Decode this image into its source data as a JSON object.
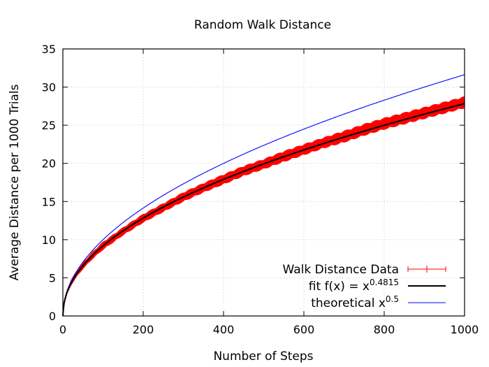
{
  "chart_data": {
    "type": "line",
    "title": "Random Walk Distance",
    "xlabel": "Number of Steps",
    "ylabel": "Average Distance per 1000 Trials",
    "xlim": [
      0,
      1000
    ],
    "ylim": [
      0,
      35
    ],
    "x_ticks": [
      "0",
      "200",
      "400",
      "600",
      "800",
      "1000"
    ],
    "y_ticks": [
      "0",
      "5",
      "10",
      "15",
      "20",
      "25",
      "30",
      "35"
    ],
    "grid": true,
    "legend_position": "bottom-right",
    "series": [
      {
        "name": "Walk Distance Data",
        "style": "errorbars",
        "color": "#ff0000",
        "x": [
          1,
          5,
          10,
          20,
          30,
          50,
          75,
          100,
          150,
          200,
          250,
          300,
          350,
          400,
          450,
          500,
          550,
          600,
          650,
          700,
          750,
          800,
          850,
          900,
          950,
          1000
        ],
        "y": [
          0.8,
          2.1,
          3.1,
          4.3,
          5.2,
          6.6,
          8.0,
          9.2,
          11.1,
          12.8,
          14.2,
          15.6,
          16.8,
          17.9,
          19.0,
          19.9,
          20.9,
          21.8,
          22.7,
          23.5,
          24.4,
          25.2,
          25.9,
          26.6,
          27.3,
          28.0
        ],
        "error_band": [
          0.15,
          0.25,
          0.3,
          0.35,
          0.4,
          0.45,
          0.5,
          0.55,
          0.55,
          0.6,
          0.6,
          0.65,
          0.65,
          0.7,
          0.7,
          0.7,
          0.75,
          0.75,
          0.75,
          0.8,
          0.8,
          0.8,
          0.8,
          0.8,
          0.8,
          0.8
        ]
      },
      {
        "name": "fit f(x) = x",
        "name_exponent": "0.4815",
        "style": "line",
        "color": "#000000",
        "function": "x^0.4815",
        "exponent": 0.4815
      },
      {
        "name": "theoretical x",
        "name_exponent": "0.5",
        "style": "line",
        "color": "#0000ff",
        "function": "x^0.5",
        "exponent": 0.5
      }
    ]
  }
}
